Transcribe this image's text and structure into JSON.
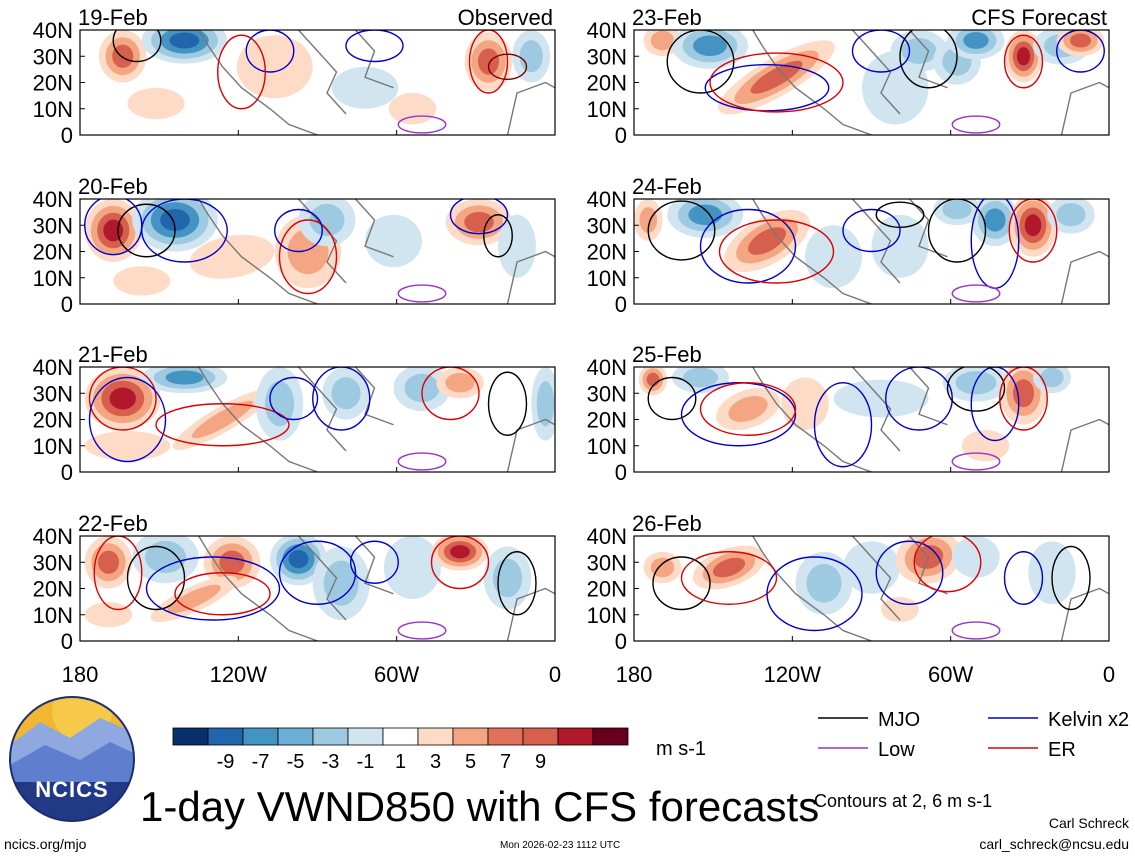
{
  "chart_data": {
    "type": "heatmap",
    "title": "1-day VWND850 with CFS forecasts",
    "variable": "VWND850",
    "units": "m s-1",
    "lon_ticks": [
      "180",
      "120W",
      "60W",
      "0"
    ],
    "lat_ticks": [
      "40N",
      "30N",
      "20N",
      "10N",
      "0"
    ],
    "lon_range": [
      -180,
      0
    ],
    "lat_range": [
      0,
      40
    ],
    "observed_label": "Observed",
    "forecast_label": "CFS Forecast",
    "panels": [
      {
        "date": "19-Feb",
        "source": "observed"
      },
      {
        "date": "20-Feb",
        "source": "observed"
      },
      {
        "date": "21-Feb",
        "source": "observed"
      },
      {
        "date": "22-Feb",
        "source": "observed"
      },
      {
        "date": "23-Feb",
        "source": "forecast"
      },
      {
        "date": "24-Feb",
        "source": "forecast"
      },
      {
        "date": "25-Feb",
        "source": "forecast"
      },
      {
        "date": "26-Feb",
        "source": "forecast"
      }
    ],
    "colorbar": {
      "labels": [
        "-9",
        "-7",
        "-5",
        "-3",
        "-1",
        "1",
        "3",
        "5",
        "7",
        "9"
      ],
      "colors": [
        "#08306b",
        "#2166ac",
        "#4393c3",
        "#6baed6",
        "#9ecae1",
        "#d1e5f0",
        "#ffffff",
        "#fddbc7",
        "#f4a582",
        "#e0705a",
        "#d6604d",
        "#b2182b",
        "#67001f"
      ]
    },
    "legend": [
      {
        "name": "MJO",
        "color": "#000000"
      },
      {
        "name": "Kelvin x2",
        "color": "#0000cc"
      },
      {
        "name": "Low",
        "color": "#9933cc"
      },
      {
        "name": "ER",
        "color": "#dd0000"
      }
    ],
    "contours_note": "Contours at 2, 6 m s-1"
  },
  "footer": {
    "logo_text": "NCICS",
    "site": "ncics.org/mjo",
    "timestamp": "Mon 2026-02-23 1112 UTC",
    "author": "Carl Schreck",
    "email": "carl_schreck@ncsu.edu"
  }
}
